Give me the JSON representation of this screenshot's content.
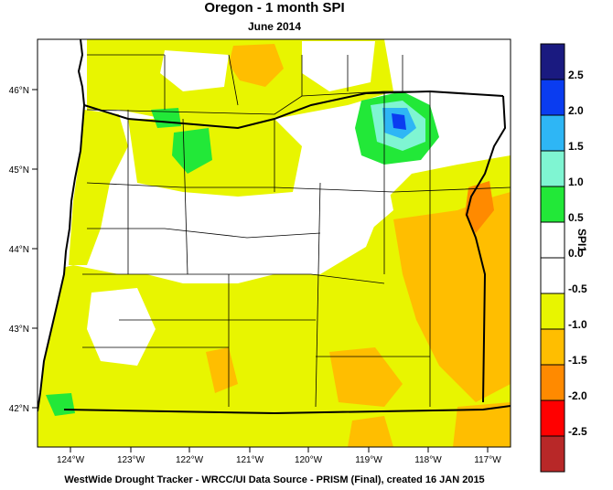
{
  "title": "Oregon - 1 month SPI",
  "subtitle": "June 2014",
  "footer": "WestWide Drought Tracker - WRCC/UI  Data Source - PRISM (Final), created 16 JAN 2015",
  "legend": {
    "title": "SPI1",
    "bins": [
      {
        "label": "2.5",
        "color": "#1a1a80"
      },
      {
        "label": "2.0",
        "color": "#0a3cf0"
      },
      {
        "label": "1.5",
        "color": "#2eb6f5"
      },
      {
        "label": "1.0",
        "color": "#7ff5d2"
      },
      {
        "label": "0.5",
        "color": "#22e838"
      },
      {
        "label": "0.0",
        "color": "#ffffff"
      },
      {
        "label": "-0.5",
        "color": "#ffffff"
      },
      {
        "label": "-1.0",
        "color": "#e8f500"
      },
      {
        "label": "-1.5",
        "color": "#ffbe00"
      },
      {
        "label": "-2.0",
        "color": "#ff8a00"
      },
      {
        "label": "-2.5",
        "color": "#ff0000"
      },
      {
        "label": "",
        "color": "#b82828"
      }
    ]
  },
  "axes": {
    "lat_labels": [
      "46°N",
      "45°N",
      "44°N",
      "43°N",
      "42°N"
    ],
    "lon_labels": [
      "124°W",
      "123°W",
      "122°W",
      "121°W",
      "120°W",
      "119°W",
      "118°W",
      "117°W"
    ]
  }
}
